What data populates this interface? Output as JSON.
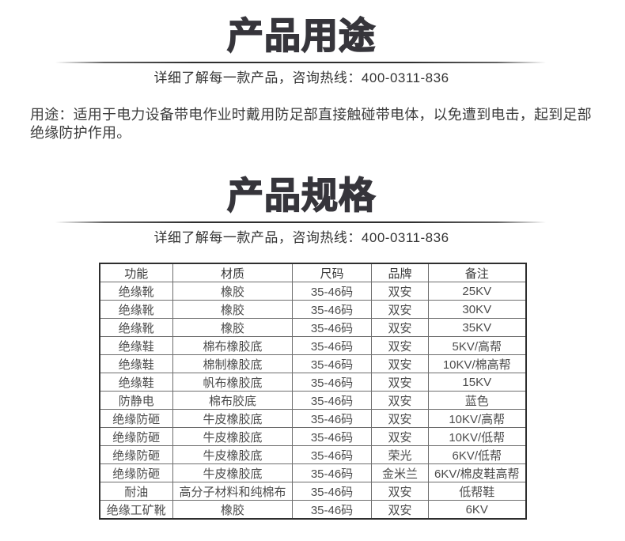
{
  "sections": {
    "usage": {
      "title": "产品用途",
      "hotline": "详细了解每一款产品，咨询热线：400-0311-836",
      "description": "用途：适用于电力设备带电作业时戴用防足部直接触碰带电体，以免遭到电击，起到足部绝缘防护作用。"
    },
    "specs": {
      "title": "产品规格",
      "hotline": "详细了解每一款产品，咨询热线：400-0311-836"
    }
  },
  "colors": {
    "title_text": "#36353b",
    "body_text": "#3d3d3d",
    "table_outer_border": "#2e2e2e",
    "table_inner_border": "#6d6d6d"
  },
  "spec_table": {
    "headers": [
      "功能",
      "材质",
      "尺码",
      "品牌",
      "备注"
    ],
    "rows": [
      [
        "绝缘靴",
        "橡胶",
        "35-46码",
        "双安",
        "25KV"
      ],
      [
        "绝缘靴",
        "橡胶",
        "35-46码",
        "双安",
        "30KV"
      ],
      [
        "绝缘靴",
        "橡胶",
        "35-46码",
        "双安",
        "35KV"
      ],
      [
        "绝缘鞋",
        "棉布橡胶底",
        "35-46码",
        "双安",
        "5KV/高帮"
      ],
      [
        "绝缘鞋",
        "棉制橡胶底",
        "35-46码",
        "双安",
        "10KV/棉高帮"
      ],
      [
        "绝缘鞋",
        "帆布橡胶底",
        "35-46码",
        "双安",
        "15KV"
      ],
      [
        "防静电",
        "棉布胶底",
        "35-46码",
        "双安",
        "蓝色"
      ],
      [
        "绝缘防砸",
        "牛皮橡胶底",
        "35-46码",
        "双安",
        "10KV/高帮"
      ],
      [
        "绝缘防砸",
        "牛皮橡胶底",
        "35-46码",
        "双安",
        "10KV/低帮"
      ],
      [
        "绝缘防砸",
        "牛皮橡胶底",
        "35-46码",
        "荣光",
        "6KV/低帮"
      ],
      [
        "绝缘防砸",
        "牛皮橡胶底",
        "35-46码",
        "金米兰",
        "6KV/棉皮鞋高帮"
      ],
      [
        "耐油",
        "高分子材料和纯棉布",
        "35-46码",
        "双安",
        "低帮鞋"
      ],
      [
        "绝缘工矿靴",
        "橡胶",
        "35-46码",
        "双安",
        "6KV"
      ]
    ]
  }
}
